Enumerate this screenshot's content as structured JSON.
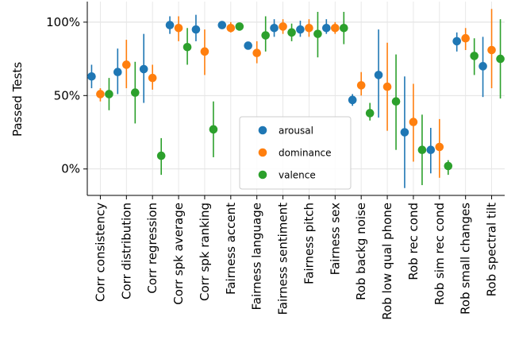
{
  "chart_data": {
    "type": "scatter",
    "ylabel": "Passed Tests",
    "ylim": [
      -18,
      114
    ],
    "yticks": [
      {
        "value": 0,
        "label": "0%"
      },
      {
        "value": 50,
        "label": "50%"
      },
      {
        "value": 100,
        "label": "100%"
      }
    ],
    "grid": true,
    "legend_placement": "center",
    "categories": [
      "Corr consistency",
      "Corr distribution",
      "Corr regression",
      "Corr spk average",
      "Corr spk ranking",
      "Fairness accent",
      "Fairness language",
      "Fairness sentiment",
      "Fairness pitch",
      "Fairness sex",
      "Rob backg noise",
      "Rob low qual phone",
      "Rob rec cond",
      "Rob sim rec cond",
      "Rob small changes",
      "Rob spectral tilt"
    ],
    "series": [
      {
        "name": "arousal",
        "color": "#1f77b4",
        "values": [
          63,
          66,
          68,
          98,
          95,
          98,
          84,
          96,
          95,
          96,
          47,
          64,
          25,
          13,
          87,
          70
        ],
        "lower": [
          55,
          51,
          45,
          92,
          87,
          96,
          82,
          90,
          90,
          92,
          43,
          35,
          -13,
          -3,
          80,
          49
        ],
        "upper": [
          71,
          82,
          92,
          104,
          105,
          100,
          86,
          102,
          101,
          102,
          51,
          95,
          63,
          28,
          93,
          90
        ]
      },
      {
        "name": "dominance",
        "color": "#ff7f0e",
        "values": [
          51,
          71,
          62,
          96,
          80,
          96,
          79,
          97,
          96,
          96,
          57,
          56,
          32,
          15,
          89,
          81
        ],
        "lower": [
          46,
          55,
          54,
          87,
          64,
          93,
          72,
          92,
          90,
          92,
          50,
          26,
          5,
          -6,
          81,
          55
        ],
        "upper": [
          55,
          88,
          71,
          104,
          95,
          100,
          87,
          102,
          102,
          100,
          66,
          86,
          58,
          34,
          96,
          109
        ]
      },
      {
        "name": "valence",
        "color": "#2ca02c",
        "values": [
          51,
          52,
          9,
          83,
          27,
          97,
          91,
          93,
          92,
          96,
          38,
          46,
          13,
          2,
          77,
          75
        ],
        "lower": [
          40,
          31,
          -4,
          71,
          8,
          95,
          80,
          87,
          76,
          85,
          33,
          13,
          -11,
          -4,
          64,
          48
        ],
        "upper": [
          62,
          73,
          21,
          96,
          46,
          99,
          104,
          99,
          107,
          107,
          45,
          78,
          37,
          6,
          89,
          102
        ]
      }
    ]
  }
}
